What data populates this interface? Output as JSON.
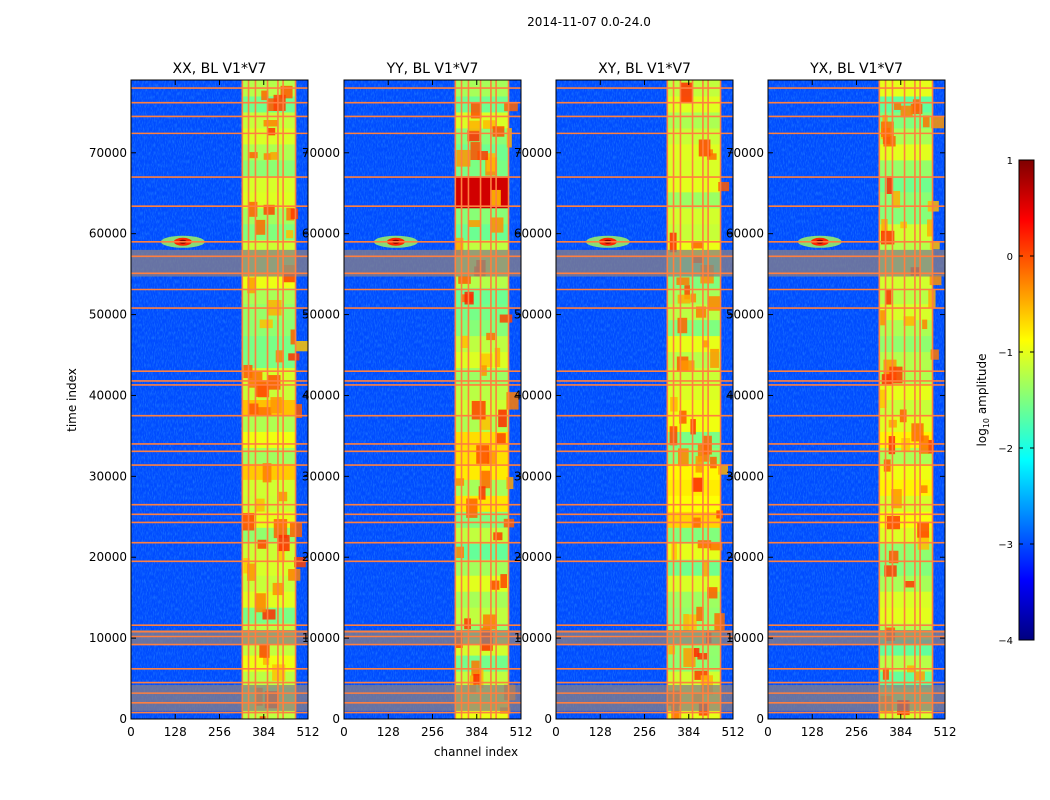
{
  "figure": {
    "suptitle": "2014-11-07 0.0-24.0",
    "xlabel": "channel index",
    "ylabel": "time index"
  },
  "colorbar": {
    "label": "log10 amplitude",
    "label_base": "log",
    "label_sub": "10",
    "label_rest": " amplitude",
    "ticks": [
      "1",
      "0",
      "−1",
      "−2",
      "−3",
      "−4"
    ],
    "tick_values": [
      1,
      0,
      -1,
      -2,
      -3,
      -4
    ],
    "vmin": -4,
    "vmax": 1,
    "colormap": "jet",
    "jet_stops": [
      "#00007f",
      "#0000ff",
      "#007fff",
      "#00ffff",
      "#7fff7f",
      "#ffff00",
      "#ff7f00",
      "#ff0000",
      "#7f0000"
    ]
  },
  "colors": {
    "flag_line": "#ff7f3f",
    "flag_band": "#8a7f85",
    "background_level": "#1f3dd6"
  },
  "chart_data": {
    "type": "heatmap",
    "xlim": [
      0,
      512
    ],
    "ylim": [
      0,
      79000
    ],
    "xticks": [
      0,
      128,
      256,
      384,
      512
    ],
    "yticks": [
      0,
      10000,
      20000,
      30000,
      40000,
      50000,
      60000,
      70000
    ],
    "panels": [
      {
        "title": "XX, BL V1*V7",
        "pol": "XX"
      },
      {
        "title": "YY, BL V1*V7",
        "pol": "YY"
      },
      {
        "title": "XY, BL V1*V7",
        "pol": "XY"
      },
      {
        "title": "YX, BL V1*V7",
        "pol": "YX"
      }
    ],
    "bright_channel_band": [
      322,
      476
    ],
    "flagged_channel_lines": [
      322,
      340,
      360,
      395,
      425,
      440,
      476
    ],
    "flagged_time_lines": [
      800,
      2000,
      3200,
      4500,
      6200,
      9200,
      10200,
      10800,
      11600,
      19500,
      21800,
      24300,
      25300,
      26500,
      31400,
      33100,
      34000,
      37500,
      41300,
      41800,
      43000,
      50800,
      53100,
      55100,
      57200,
      59000,
      63400,
      67000,
      72400,
      74500,
      76200,
      78000
    ],
    "flagged_time_bands": [
      [
        1000,
        4200
      ],
      [
        9200,
        11000
      ],
      [
        54700,
        58000
      ]
    ],
    "hot_spot": {
      "channel": 150,
      "time": 59000,
      "level": 1.0
    },
    "background_level": -3.0,
    "band_level": -1.3
  }
}
